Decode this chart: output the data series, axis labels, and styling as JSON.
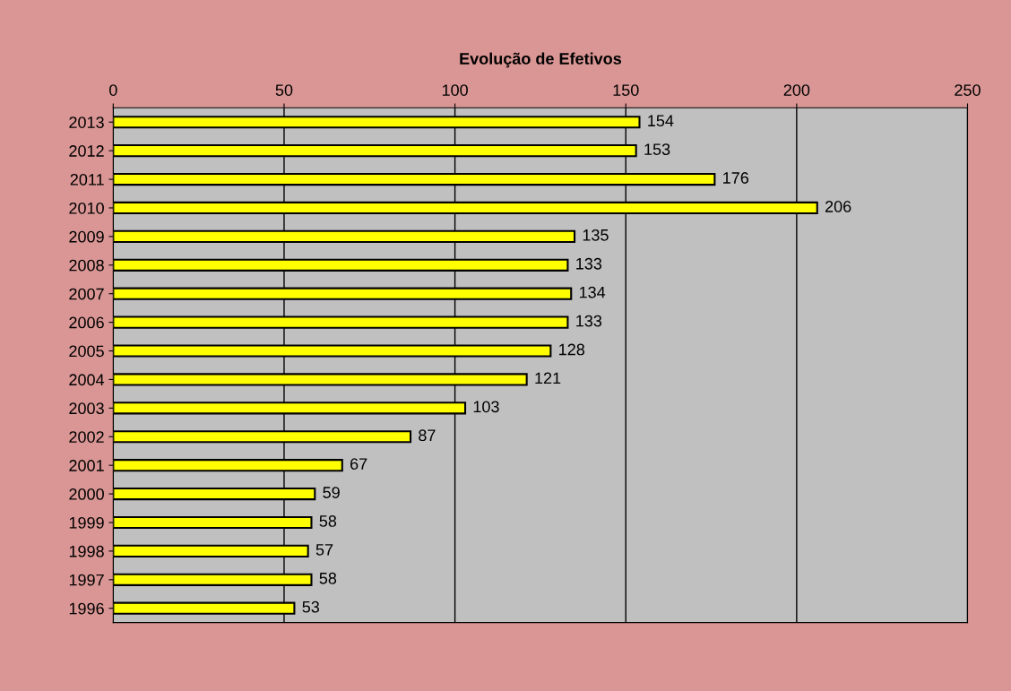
{
  "chart_data": {
    "type": "bar",
    "orientation": "horizontal",
    "title": "Evolução de Efetivos",
    "categories": [
      "2013",
      "2012",
      "2011",
      "2010",
      "2009",
      "2008",
      "2007",
      "2006",
      "2005",
      "2004",
      "2003",
      "2002",
      "2001",
      "2000",
      "1999",
      "1998",
      "1997",
      "1996"
    ],
    "values": [
      154,
      153,
      176,
      206,
      135,
      133,
      134,
      133,
      128,
      121,
      103,
      87,
      67,
      59,
      58,
      57,
      58,
      53
    ],
    "color": "#ffff00",
    "xlim": [
      0,
      250
    ],
    "xticks": [
      0,
      50,
      100,
      150,
      200,
      250
    ],
    "grid": "x",
    "data_labels": true,
    "legend": false
  }
}
